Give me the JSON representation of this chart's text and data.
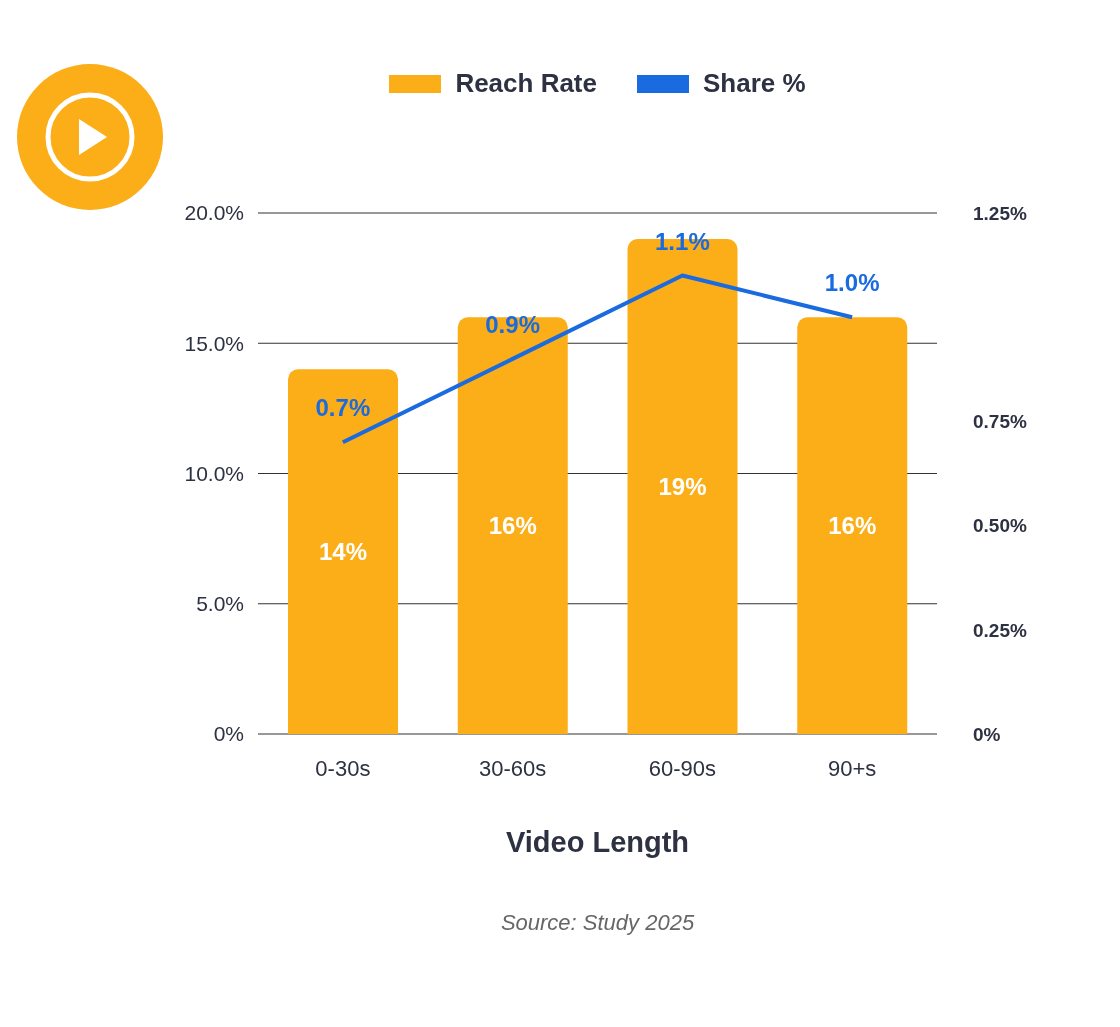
{
  "chart_data": {
    "type": "bar",
    "xlabel": "Video Length",
    "annotations": [
      "Source: Study 2025"
    ],
    "categories": [
      "0-30s",
      "30-60s",
      "60-90s",
      "90+s"
    ],
    "series": [
      {
        "name": "Reach Rate",
        "color": "#fbae17",
        "values": [
          14,
          16,
          19,
          16
        ],
        "value_labels": [
          "14%",
          "16%",
          "19%",
          "16%"
        ]
      },
      {
        "name": "Share %",
        "type": "line",
        "axis": "y2",
        "color": "#1a6ae0",
        "values": [
          0.7,
          0.9,
          1.1,
          1.0
        ],
        "value_labels": [
          "0.7%",
          "0.9%",
          "1.1%",
          "1.0%"
        ]
      }
    ],
    "ylim": [
      0,
      20
    ],
    "yticks": [
      {
        "value": 0,
        "label": "0%"
      },
      {
        "value": 5,
        "label": "5.0%"
      },
      {
        "value": 10,
        "label": "10.0%"
      },
      {
        "value": 15,
        "label": "15.0%"
      },
      {
        "value": 20,
        "label": "20.0%"
      }
    ],
    "y2lim": [
      0,
      1.25
    ],
    "y2ticks": [
      {
        "value": 0,
        "label": "0%"
      },
      {
        "value": 0.25,
        "label": "0.25%"
      },
      {
        "value": 0.5,
        "label": "0.50%"
      },
      {
        "value": 0.75,
        "label": "0.75%"
      },
      {
        "value": 1.25,
        "label": "1.25%"
      }
    ],
    "grid": "y",
    "legend": "top",
    "marker": "none",
    "line_style": "solid"
  }
}
